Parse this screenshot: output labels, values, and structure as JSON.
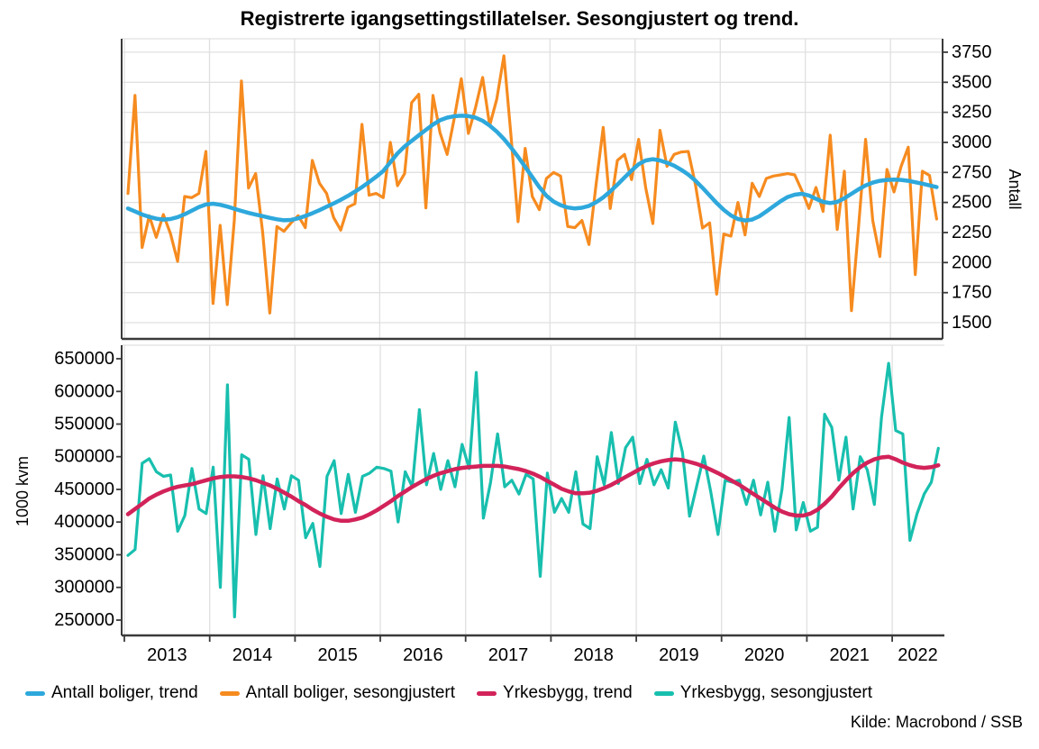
{
  "title": "Registrerte igangsettingstillatelser. Sesongjustert og trend.",
  "source": "Kilde: Macrobond / SSB",
  "legend": {
    "items": [
      {
        "label": "Antall boliger, trend",
        "color": "#2EA8DC"
      },
      {
        "label": "Antall boliger, sesongjustert",
        "color": "#F68B1F"
      },
      {
        "label": "Yrkesbygg, trend",
        "color": "#D2235A"
      },
      {
        "label": "Yrkesbygg, sesongjustert",
        "color": "#18BFAE"
      }
    ]
  },
  "colors": {
    "grid": "#E0E0E0",
    "axis": "#3A3A3A",
    "background": "#FFFFFF"
  },
  "chart_data": [
    {
      "type": "line",
      "panel": "top",
      "name": "antall-boliger-panel",
      "ylabel": "Antall",
      "ylabel_side": "right",
      "ylim": [
        1365,
        3862
      ],
      "yticks": [
        1500,
        1750,
        2000,
        2250,
        2500,
        2750,
        3000,
        3250,
        3500,
        3750
      ],
      "xlim": [
        2012.968,
        2022.612
      ],
      "grid_horizontal": true,
      "grid_vertical": true,
      "x_start": "2013-01",
      "frequency": "monthly",
      "series": [
        {
          "name": "Antall boliger, sesongjustert",
          "color": "#F68B1F",
          "line_width": 3.2,
          "values": [
            2575,
            3390,
            2125,
            2390,
            2210,
            2400,
            2240,
            2010,
            2550,
            2540,
            2575,
            2925,
            1660,
            2310,
            1650,
            2350,
            3510,
            2620,
            2740,
            2250,
            1580,
            2300,
            2260,
            2330,
            2390,
            2290,
            2850,
            2660,
            2575,
            2375,
            2270,
            2460,
            2490,
            3150,
            2560,
            2575,
            2540,
            3000,
            2640,
            2740,
            3330,
            3400,
            2455,
            3390,
            3080,
            2900,
            3200,
            3530,
            3075,
            3290,
            3540,
            3140,
            3360,
            3720,
            3060,
            2340,
            2950,
            2550,
            2440,
            2700,
            2750,
            2720,
            2300,
            2290,
            2350,
            2150,
            2650,
            3125,
            2450,
            2850,
            2900,
            2690,
            3025,
            2620,
            2325,
            3100,
            2800,
            2900,
            2920,
            2925,
            2650,
            2287,
            2330,
            1737,
            2237,
            2220,
            2500,
            2230,
            2660,
            2550,
            2700,
            2720,
            2730,
            2740,
            2730,
            2600,
            2450,
            2625,
            2425,
            3060,
            2275,
            2760,
            1600,
            2300,
            3025,
            2350,
            2050,
            2775,
            2587,
            2800,
            2960,
            1900,
            2760,
            2725,
            2362
          ]
        },
        {
          "name": "Antall boliger, trend",
          "color": "#2EA8DC",
          "line_width": 4.5,
          "values": [
            2450,
            2425,
            2400,
            2380,
            2365,
            2358,
            2362,
            2378,
            2402,
            2432,
            2462,
            2483,
            2490,
            2481,
            2466,
            2448,
            2430,
            2413,
            2399,
            2386,
            2372,
            2360,
            2352,
            2355,
            2368,
            2388,
            2410,
            2436,
            2464,
            2492,
            2522,
            2554,
            2590,
            2628,
            2670,
            2714,
            2762,
            2835,
            2908,
            2966,
            3012,
            3058,
            3104,
            3148,
            3184,
            3206,
            3218,
            3222,
            3219,
            3206,
            3180,
            3140,
            3089,
            3028,
            2958,
            2880,
            2796,
            2712,
            2628,
            2556,
            2508,
            2478,
            2458,
            2450,
            2456,
            2472,
            2502,
            2542,
            2592,
            2648,
            2708,
            2766,
            2818,
            2850,
            2860,
            2850,
            2830,
            2806,
            2772,
            2732,
            2682,
            2622,
            2558,
            2495,
            2438,
            2392,
            2362,
            2350,
            2358,
            2385,
            2425,
            2468,
            2510,
            2545,
            2565,
            2572,
            2558,
            2530,
            2505,
            2495,
            2505,
            2535,
            2572,
            2610,
            2642,
            2665,
            2680,
            2688,
            2690,
            2688,
            2680,
            2668,
            2656,
            2642,
            2628
          ]
        }
      ]
    },
    {
      "type": "line",
      "panel": "bottom",
      "name": "yrkesbygg-panel",
      "ylabel": "1000 kvm",
      "ylabel_side": "left",
      "ylim": [
        226550,
        670690
      ],
      "yticks": [
        250000,
        300000,
        350000,
        400000,
        450000,
        500000,
        550000,
        600000,
        650000
      ],
      "xlim": [
        2012.968,
        2022.612
      ],
      "grid_horizontal": false,
      "grid_vertical": true,
      "x_start": "2013-01",
      "frequency": "monthly",
      "series": [
        {
          "name": "Yrkesbygg, sesongjustert",
          "color": "#18BFAE",
          "line_width": 3.2,
          "values": [
            349000,
            358000,
            490000,
            497000,
            477000,
            470000,
            472000,
            386000,
            410000,
            482000,
            420000,
            413000,
            484000,
            300000,
            610000,
            255000,
            503000,
            496000,
            381000,
            471000,
            390000,
            466000,
            420000,
            471000,
            464000,
            376000,
            398000,
            332000,
            470000,
            494000,
            413000,
            473000,
            415000,
            470000,
            475000,
            484000,
            482000,
            478000,
            400000,
            477000,
            454000,
            572000,
            457000,
            505000,
            450000,
            494000,
            454000,
            519000,
            482000,
            629000,
            406000,
            460000,
            535000,
            454000,
            464000,
            443000,
            473000,
            466000,
            317000,
            475000,
            415000,
            436000,
            415000,
            477000,
            397000,
            390000,
            500000,
            457000,
            537000,
            459000,
            514000,
            530000,
            459000,
            496000,
            457000,
            480000,
            452000,
            553000,
            507000,
            409000,
            455000,
            501000,
            445000,
            381000,
            464000,
            461000,
            464000,
            427000,
            464000,
            411000,
            461000,
            386000,
            450000,
            560000,
            388000,
            430000,
            386000,
            392000,
            565000,
            545000,
            464000,
            530000,
            420000,
            500000,
            480000,
            427000,
            560000,
            643000,
            540000,
            535000,
            372000,
            413000,
            443000,
            461000,
            513000
          ]
        },
        {
          "name": "Yrkesbygg, trend",
          "color": "#D2235A",
          "line_width": 4.5,
          "values": [
            412000,
            420000,
            428000,
            436000,
            442000,
            447000,
            451000,
            454000,
            456000,
            458000,
            461000,
            464000,
            467000,
            469000,
            470000,
            470000,
            469000,
            467000,
            464000,
            460000,
            456000,
            451000,
            445000,
            439000,
            432000,
            426000,
            419000,
            413000,
            408000,
            404000,
            402000,
            402000,
            404000,
            407000,
            412000,
            418000,
            425000,
            432000,
            440000,
            447000,
            454000,
            460000,
            466000,
            471000,
            475000,
            478000,
            481000,
            483000,
            484000,
            485000,
            486000,
            486000,
            486000,
            485000,
            483000,
            481000,
            478000,
            474000,
            469000,
            463000,
            457000,
            451000,
            447000,
            444000,
            444000,
            445000,
            448000,
            452000,
            457000,
            463000,
            469000,
            475000,
            481000,
            486000,
            490000,
            493000,
            495000,
            496000,
            495000,
            492000,
            489000,
            485000,
            480000,
            475000,
            469000,
            463000,
            457000,
            450000,
            443000,
            436000,
            429000,
            422000,
            416000,
            412000,
            410000,
            410000,
            413000,
            419000,
            428000,
            439000,
            452000,
            464000,
            475000,
            484000,
            491000,
            496000,
            499000,
            500000,
            496000,
            491000,
            487000,
            484000,
            483000,
            484000,
            487000
          ]
        }
      ]
    }
  ],
  "x_axis": {
    "years": [
      2013,
      2014,
      2015,
      2016,
      2017,
      2018,
      2019,
      2020,
      2021,
      2022
    ],
    "labels": [
      "2013",
      "2014",
      "2015",
      "2016",
      "2017",
      "2018",
      "2019",
      "2020",
      "2021",
      "2022"
    ]
  }
}
